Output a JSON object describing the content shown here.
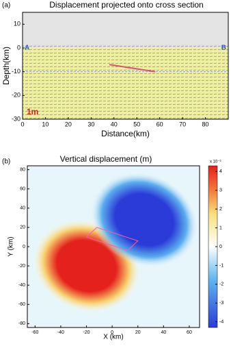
{
  "chart_data": [
    {
      "type": "vector",
      "panel_label": "(a)",
      "title": "Displacement projected onto cross section",
      "xlabel": "Distance(km)",
      "ylabel": "Depth(km)",
      "xlim": [
        0,
        90
      ],
      "ylim": [
        -30,
        15
      ],
      "xticks": [
        0,
        10,
        20,
        30,
        40,
        50,
        60,
        70,
        80
      ],
      "yticks": [
        10,
        0,
        -10,
        -20,
        -30
      ],
      "left_label": "A",
      "right_label": "B",
      "scale_label": "1m",
      "section_depth": -10
    },
    {
      "type": "heatmap",
      "panel_label": "(b)",
      "title": "Vertical displacement (m)",
      "xlabel": "X (km)",
      "ylabel": "Y (km)",
      "xlim": [
        -66,
        68
      ],
      "ylim": [
        -84,
        84
      ],
      "xticks": [
        -60,
        -40,
        -20,
        0,
        20,
        40,
        60
      ],
      "yticks": [
        80,
        60,
        40,
        20,
        0,
        -20,
        -40,
        -60,
        -80
      ],
      "clim": [
        -4.3,
        4.3
      ],
      "cticks": [
        4,
        3,
        2,
        1,
        0,
        -1,
        -2,
        -3,
        -4
      ],
      "cbar_label": "x 10⁻³",
      "x": [
        -20,
        25
      ],
      "y": [
        -20,
        28
      ],
      "values": [
        4.3,
        -4.3
      ]
    }
  ]
}
